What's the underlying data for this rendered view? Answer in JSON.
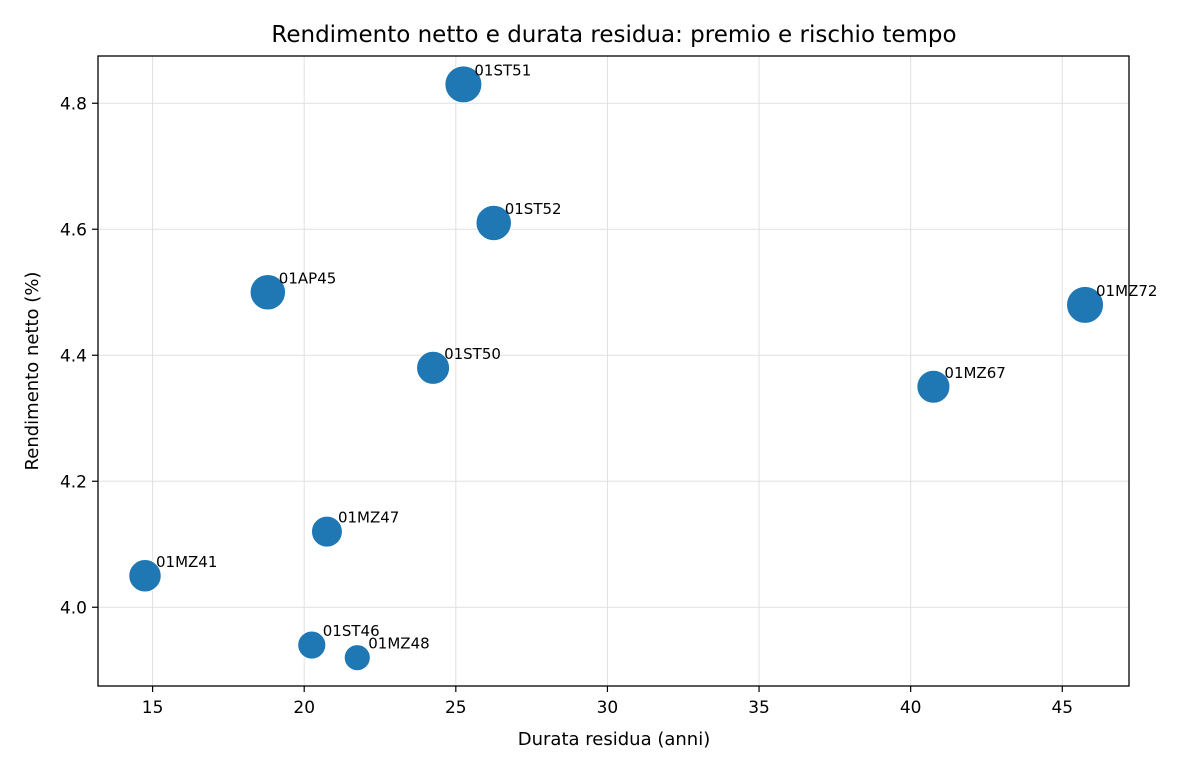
{
  "chart_data": {
    "type": "scatter",
    "title": "Rendimento netto e durata residua: premio e rischio tempo",
    "xlabel": "Durata residua (anni)",
    "ylabel": "Rendimento netto (%)",
    "xlim": [
      13.2,
      47.2
    ],
    "ylim": [
      3.875,
      4.875
    ],
    "xticks": [
      15,
      20,
      25,
      30,
      35,
      40,
      45
    ],
    "yticks": [
      4.0,
      4.2,
      4.4,
      4.6,
      4.8
    ],
    "ytick_labels": [
      "4.0",
      "4.2",
      "4.4",
      "4.6",
      "4.8"
    ],
    "grid": true,
    "color": "#1f77b4",
    "points": [
      {
        "label": "01ST51",
        "x": 25.25,
        "y": 4.83,
        "size": 1.0
      },
      {
        "label": "01ST52",
        "x": 26.25,
        "y": 4.61,
        "size": 0.92
      },
      {
        "label": "01AP45",
        "x": 18.8,
        "y": 4.5,
        "size": 0.92
      },
      {
        "label": "01MZ72",
        "x": 45.75,
        "y": 4.48,
        "size": 1.0
      },
      {
        "label": "01ST50",
        "x": 24.25,
        "y": 4.38,
        "size": 0.8
      },
      {
        "label": "01MZ67",
        "x": 40.75,
        "y": 4.35,
        "size": 0.8
      },
      {
        "label": "01MZ47",
        "x": 20.75,
        "y": 4.12,
        "size": 0.7
      },
      {
        "label": "01MZ41",
        "x": 14.75,
        "y": 4.05,
        "size": 0.77
      },
      {
        "label": "01ST46",
        "x": 20.25,
        "y": 3.94,
        "size": 0.58
      },
      {
        "label": "01MZ48",
        "x": 21.75,
        "y": 3.92,
        "size": 0.5
      }
    ]
  }
}
